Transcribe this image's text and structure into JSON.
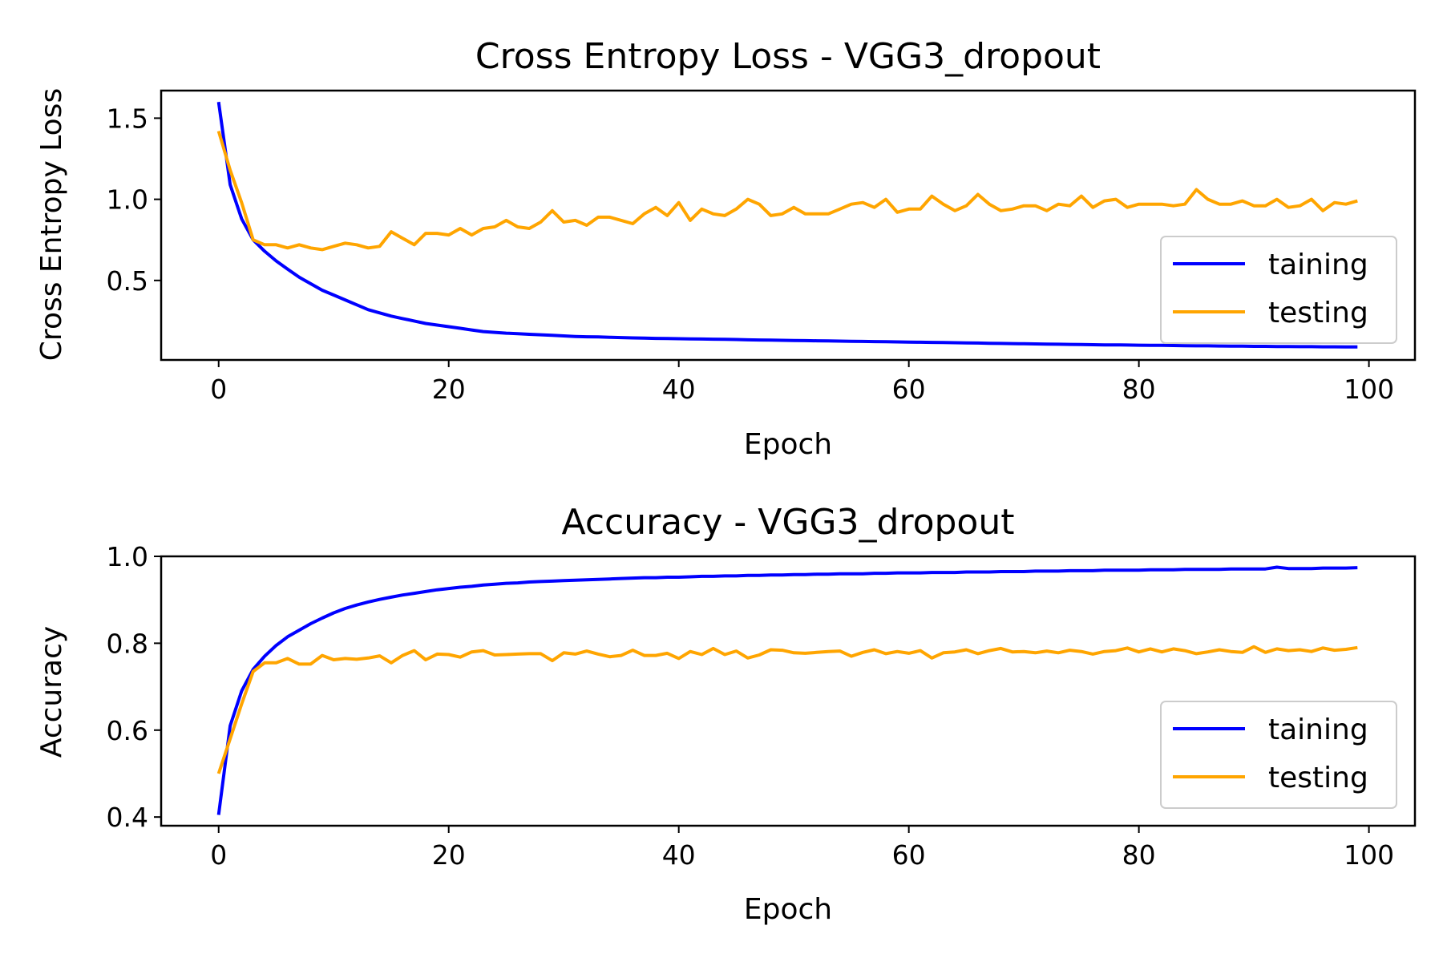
{
  "chart_data": [
    {
      "type": "line",
      "title": "Cross Entropy Loss - VGG3_dropout",
      "xlabel": "Epoch",
      "ylabel": "Cross Entropy Loss",
      "xlim": [
        -5,
        104
      ],
      "ylim": [
        0.01,
        1.67
      ],
      "xticks": [
        0,
        20,
        40,
        60,
        80,
        100
      ],
      "xtick_labels": [
        "0",
        "20",
        "40",
        "60",
        "80",
        "100"
      ],
      "yticks": [
        0.5,
        1.0,
        1.5
      ],
      "ytick_labels": [
        "0.5",
        "1.0",
        "1.5"
      ],
      "grid": false,
      "legend_position": "lower-right",
      "series": [
        {
          "name": "taining",
          "color": "#0000ff",
          "x_start": 0,
          "x_step": 1,
          "values": [
            1.6,
            1.09,
            0.88,
            0.75,
            0.68,
            0.62,
            0.57,
            0.52,
            0.48,
            0.44,
            0.41,
            0.38,
            0.35,
            0.32,
            0.3,
            0.28,
            0.265,
            0.25,
            0.235,
            0.225,
            0.215,
            0.205,
            0.195,
            0.185,
            0.18,
            0.175,
            0.172,
            0.168,
            0.165,
            0.162,
            0.158,
            0.155,
            0.153,
            0.152,
            0.15,
            0.148,
            0.146,
            0.145,
            0.143,
            0.142,
            0.141,
            0.14,
            0.139,
            0.138,
            0.137,
            0.136,
            0.134,
            0.133,
            0.132,
            0.131,
            0.13,
            0.129,
            0.128,
            0.127,
            0.126,
            0.125,
            0.124,
            0.123,
            0.122,
            0.121,
            0.12,
            0.119,
            0.118,
            0.117,
            0.116,
            0.115,
            0.114,
            0.113,
            0.112,
            0.111,
            0.11,
            0.109,
            0.108,
            0.107,
            0.106,
            0.105,
            0.104,
            0.103,
            0.103,
            0.102,
            0.101,
            0.1,
            0.1,
            0.099,
            0.098,
            0.097,
            0.097,
            0.096,
            0.095,
            0.095,
            0.094,
            0.094,
            0.093,
            0.093,
            0.092,
            0.092,
            0.091,
            0.091,
            0.09,
            0.09
          ]
        },
        {
          "name": "testing",
          "color": "#ffa500",
          "x_start": 0,
          "x_step": 1,
          "values": [
            1.42,
            1.18,
            0.98,
            0.75,
            0.72,
            0.72,
            0.7,
            0.72,
            0.7,
            0.69,
            0.71,
            0.73,
            0.72,
            0.7,
            0.71,
            0.8,
            0.76,
            0.72,
            0.79,
            0.79,
            0.78,
            0.82,
            0.78,
            0.82,
            0.83,
            0.87,
            0.83,
            0.82,
            0.86,
            0.93,
            0.86,
            0.87,
            0.84,
            0.89,
            0.89,
            0.87,
            0.85,
            0.91,
            0.95,
            0.9,
            0.98,
            0.87,
            0.94,
            0.91,
            0.9,
            0.94,
            1.0,
            0.97,
            0.9,
            0.91,
            0.95,
            0.91,
            0.91,
            0.91,
            0.94,
            0.97,
            0.98,
            0.95,
            1.0,
            0.92,
            0.94,
            0.94,
            1.02,
            0.97,
            0.93,
            0.96,
            1.03,
            0.97,
            0.93,
            0.94,
            0.96,
            0.96,
            0.93,
            0.97,
            0.96,
            1.02,
            0.95,
            0.99,
            1.0,
            0.95,
            0.97,
            0.97,
            0.97,
            0.96,
            0.97,
            1.06,
            1.0,
            0.97,
            0.97,
            0.99,
            0.96,
            0.96,
            1.0,
            0.95,
            0.96,
            1.0,
            0.93,
            0.98,
            0.97,
            0.99
          ]
        }
      ]
    },
    {
      "type": "line",
      "title": "Accuracy - VGG3_dropout",
      "xlabel": "Epoch",
      "ylabel": "Accuracy",
      "xlim": [
        -5,
        104
      ],
      "ylim": [
        0.38,
        1.0
      ],
      "xticks": [
        0,
        20,
        40,
        60,
        80,
        100
      ],
      "xtick_labels": [
        "0",
        "20",
        "40",
        "60",
        "80",
        "100"
      ],
      "yticks": [
        0.4,
        0.6,
        0.8,
        1.0
      ],
      "ytick_labels": [
        "0.4",
        "0.6",
        "0.8",
        "1.0"
      ],
      "grid": false,
      "legend_position": "lower-right",
      "series": [
        {
          "name": "taining",
          "color": "#0000ff",
          "x_start": 0,
          "x_step": 1,
          "values": [
            0.405,
            0.61,
            0.69,
            0.74,
            0.77,
            0.795,
            0.815,
            0.83,
            0.845,
            0.858,
            0.87,
            0.88,
            0.888,
            0.895,
            0.901,
            0.906,
            0.911,
            0.915,
            0.919,
            0.923,
            0.926,
            0.929,
            0.931,
            0.934,
            0.936,
            0.938,
            0.939,
            0.941,
            0.942,
            0.943,
            0.944,
            0.945,
            0.946,
            0.947,
            0.948,
            0.949,
            0.95,
            0.951,
            0.951,
            0.952,
            0.952,
            0.953,
            0.954,
            0.954,
            0.955,
            0.955,
            0.956,
            0.956,
            0.957,
            0.957,
            0.958,
            0.958,
            0.959,
            0.959,
            0.96,
            0.96,
            0.96,
            0.961,
            0.961,
            0.962,
            0.962,
            0.962,
            0.963,
            0.963,
            0.963,
            0.964,
            0.964,
            0.964,
            0.965,
            0.965,
            0.965,
            0.966,
            0.966,
            0.966,
            0.967,
            0.967,
            0.967,
            0.968,
            0.968,
            0.968,
            0.968,
            0.969,
            0.969,
            0.969,
            0.97,
            0.97,
            0.97,
            0.97,
            0.971,
            0.971,
            0.971,
            0.971,
            0.975,
            0.972,
            0.972,
            0.972,
            0.973,
            0.973,
            0.973,
            0.974
          ]
        },
        {
          "name": "testing",
          "color": "#ffa500",
          "x_start": 0,
          "x_step": 1,
          "values": [
            0.5,
            0.58,
            0.66,
            0.735,
            0.755,
            0.755,
            0.765,
            0.752,
            0.752,
            0.772,
            0.762,
            0.765,
            0.763,
            0.766,
            0.771,
            0.755,
            0.772,
            0.783,
            0.762,
            0.775,
            0.774,
            0.768,
            0.78,
            0.783,
            0.773,
            0.774,
            0.775,
            0.776,
            0.776,
            0.76,
            0.778,
            0.775,
            0.782,
            0.775,
            0.769,
            0.772,
            0.784,
            0.772,
            0.772,
            0.777,
            0.765,
            0.781,
            0.774,
            0.788,
            0.774,
            0.782,
            0.766,
            0.773,
            0.785,
            0.784,
            0.778,
            0.777,
            0.779,
            0.781,
            0.782,
            0.77,
            0.779,
            0.785,
            0.776,
            0.781,
            0.777,
            0.783,
            0.766,
            0.778,
            0.78,
            0.785,
            0.776,
            0.783,
            0.788,
            0.78,
            0.781,
            0.778,
            0.782,
            0.778,
            0.784,
            0.781,
            0.775,
            0.781,
            0.783,
            0.789,
            0.78,
            0.787,
            0.78,
            0.787,
            0.783,
            0.776,
            0.78,
            0.785,
            0.781,
            0.779,
            0.792,
            0.779,
            0.787,
            0.783,
            0.785,
            0.781,
            0.789,
            0.784,
            0.786,
            0.79
          ]
        }
      ]
    }
  ]
}
